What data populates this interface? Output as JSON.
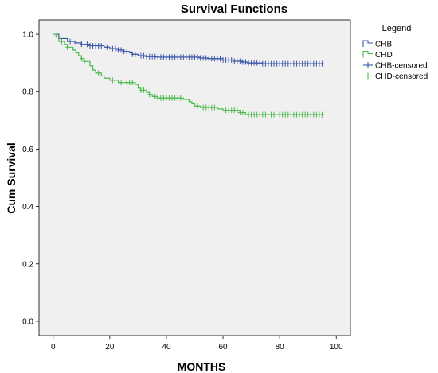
{
  "chart_data": {
    "type": "line",
    "step": true,
    "title": "Survival Functions",
    "xlabel": "MONTHS",
    "ylabel": "Cum Survival",
    "xlim": [
      -5,
      105
    ],
    "ylim": [
      -0.05,
      1.05
    ],
    "xticks": [
      "0",
      "20",
      "40",
      "60",
      "80",
      "100"
    ],
    "yticks": [
      "0.0",
      "0.2",
      "0.4",
      "0.6",
      "0.8",
      "1.0"
    ],
    "grid": false,
    "legend": {
      "title": "Legend",
      "position": "top-right",
      "entries": [
        "CHB",
        "CHD",
        "CHB-censored",
        "CHD-censored"
      ]
    },
    "series": [
      {
        "name": "CHB",
        "color": "#3b56a8",
        "steps": [
          [
            0,
            1.0
          ],
          [
            2,
            0.985
          ],
          [
            5,
            0.975
          ],
          [
            8,
            0.97
          ],
          [
            10,
            0.965
          ],
          [
            13,
            0.96
          ],
          [
            18,
            0.955
          ],
          [
            20,
            0.95
          ],
          [
            23,
            0.945
          ],
          [
            25,
            0.94
          ],
          [
            27,
            0.935
          ],
          [
            28,
            0.93
          ],
          [
            30,
            0.925
          ],
          [
            33,
            0.922
          ],
          [
            37,
            0.92
          ],
          [
            52,
            0.917
          ],
          [
            55,
            0.915
          ],
          [
            60,
            0.91
          ],
          [
            64,
            0.906
          ],
          [
            67,
            0.903
          ],
          [
            69,
            0.9
          ],
          [
            74,
            0.897
          ],
          [
            95,
            0.897
          ]
        ],
        "censored_x": [
          6,
          8,
          10,
          12,
          13,
          14,
          15,
          16,
          17,
          19,
          21,
          22,
          23,
          24,
          25,
          26,
          28,
          29,
          31,
          32,
          33,
          34,
          35,
          36,
          37,
          38,
          39,
          40,
          41,
          42,
          43,
          44,
          45,
          46,
          47,
          48,
          49,
          50,
          51,
          52,
          53,
          54,
          55,
          56,
          57,
          58,
          59,
          60,
          61,
          62,
          63,
          64,
          65,
          66,
          67,
          68,
          69,
          70,
          71,
          72,
          73,
          74,
          75,
          76,
          77,
          78,
          79,
          80,
          81,
          82,
          83,
          84,
          85,
          86,
          87,
          88,
          89,
          90,
          91,
          92,
          93,
          94,
          95
        ]
      },
      {
        "name": "CHD",
        "color": "#4cbb4c",
        "steps": [
          [
            0,
            1.0
          ],
          [
            1,
            0.99
          ],
          [
            2,
            0.975
          ],
          [
            4,
            0.965
          ],
          [
            5,
            0.955
          ],
          [
            7,
            0.945
          ],
          [
            8,
            0.935
          ],
          [
            9,
            0.925
          ],
          [
            10,
            0.915
          ],
          [
            11,
            0.905
          ],
          [
            13,
            0.89
          ],
          [
            14,
            0.875
          ],
          [
            15,
            0.865
          ],
          [
            17,
            0.855
          ],
          [
            18,
            0.847
          ],
          [
            20,
            0.84
          ],
          [
            23,
            0.832
          ],
          [
            29,
            0.825
          ],
          [
            30,
            0.812
          ],
          [
            31,
            0.805
          ],
          [
            33,
            0.797
          ],
          [
            34,
            0.79
          ],
          [
            35,
            0.783
          ],
          [
            37,
            0.778
          ],
          [
            46,
            0.773
          ],
          [
            48,
            0.765
          ],
          [
            49,
            0.758
          ],
          [
            50,
            0.75
          ],
          [
            52,
            0.745
          ],
          [
            58,
            0.74
          ],
          [
            60,
            0.735
          ],
          [
            66,
            0.727
          ],
          [
            68,
            0.72
          ],
          [
            95,
            0.72
          ]
        ],
        "censored_x": [
          3,
          5,
          10,
          11,
          16,
          21,
          24,
          26,
          27,
          28,
          31,
          32,
          34,
          36,
          37,
          38,
          39,
          40,
          41,
          42,
          43,
          44,
          45,
          51,
          53,
          54,
          55,
          56,
          57,
          61,
          62,
          63,
          64,
          65,
          66,
          67,
          69,
          70,
          71,
          72,
          73,
          74,
          75,
          77,
          78,
          80,
          81,
          82,
          83,
          84,
          85,
          86,
          87,
          88,
          89,
          90,
          91,
          92,
          93,
          94,
          95
        ]
      }
    ]
  }
}
